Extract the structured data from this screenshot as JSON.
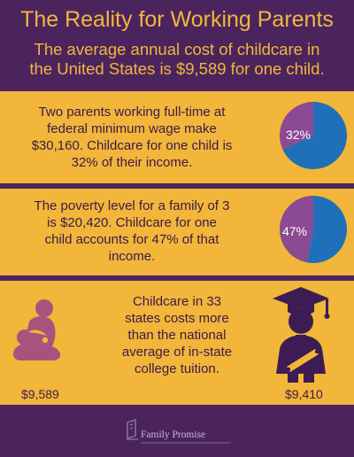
{
  "header": {
    "title": "The Reality for Working Parents",
    "subtitle_line1": "The average annual cost of childcare in",
    "subtitle_line2": "the United States is $9,589 for one child."
  },
  "stats": [
    {
      "lines": [
        "Two parents working full-time at",
        "federal minimum wage make",
        "$30,160.  Childcare for one child is",
        "32% of their income."
      ],
      "pie_label": "32%"
    },
    {
      "lines": [
        "The poverty level for a family of 3",
        "is $20,420.  Childcare for one",
        "child accounts for 47% of that",
        "income."
      ],
      "pie_label": "47%"
    }
  ],
  "comparison": {
    "lines": [
      "Childcare in 33",
      "states costs more",
      "than the national",
      "average of  in-state",
      "college tuition."
    ],
    "childcare_amount": "$9,589",
    "tuition_amount": "$9,410"
  },
  "footer": {
    "logo_name": "Family Promise"
  },
  "colors": {
    "background_purple": "#4b245e",
    "section_gold": "#f2b63a",
    "text_dark": "#3a1a4b",
    "pie_blue": "#1f70b8",
    "pie_purple": "#8b4a93",
    "icon_mauve": "#a8537d",
    "icon_purple": "#3d1c54",
    "logo_text": "#c5b7d6"
  },
  "icons": {
    "mother_child": "mother-nursing-child-icon",
    "graduate": "graduate-with-diploma-icon",
    "logo": "family-promise-logo-icon"
  },
  "chart_data": [
    {
      "type": "pie",
      "slices": [
        {
          "label": "32%",
          "value": 32
        },
        {
          "value": 68
        }
      ]
    },
    {
      "type": "pie",
      "slices": [
        {
          "label": "47%",
          "value": 47
        },
        {
          "value": 53
        }
      ]
    }
  ]
}
